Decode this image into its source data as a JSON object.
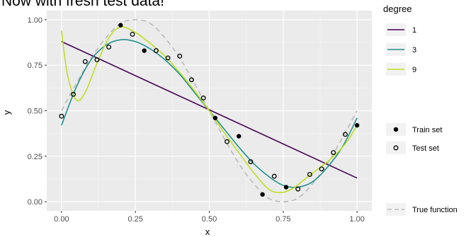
{
  "chart_data": {
    "type": "scatter",
    "title": "Now with fresh test data!",
    "xlabel": "x",
    "ylabel": "y",
    "xlim": [
      -0.05,
      1.05
    ],
    "ylim": [
      -0.05,
      1.05
    ],
    "x_ticks": [
      0,
      0.25,
      0.5,
      0.75,
      1
    ],
    "x_tick_labels": [
      "0.00",
      "0.25",
      "0.50",
      "0.75",
      "1.00"
    ],
    "y_ticks": [
      0,
      0.25,
      0.5,
      0.75,
      1
    ],
    "y_tick_labels": [
      "0.00",
      "0.25",
      "0.50",
      "0.75",
      "1.00"
    ],
    "grid": true,
    "panel_background": "#ebebeb",
    "legend_placement": "right",
    "degree_legend_title": "degree",
    "series": [
      {
        "name": "1",
        "color": "#440154",
        "points": [
          [
            0,
            0.88
          ],
          [
            1,
            0.13
          ]
        ]
      },
      {
        "name": "3",
        "color": "#21908c",
        "points": [
          [
            0,
            0.42
          ],
          [
            0.05,
            0.63
          ],
          [
            0.1,
            0.78
          ],
          [
            0.15,
            0.86
          ],
          [
            0.2,
            0.89
          ],
          [
            0.25,
            0.88
          ],
          [
            0.3,
            0.84
          ],
          [
            0.35,
            0.78
          ],
          [
            0.4,
            0.7
          ],
          [
            0.45,
            0.6
          ],
          [
            0.5,
            0.5
          ],
          [
            0.55,
            0.4
          ],
          [
            0.6,
            0.3
          ],
          [
            0.65,
            0.21
          ],
          [
            0.7,
            0.14
          ],
          [
            0.75,
            0.09
          ],
          [
            0.8,
            0.08
          ],
          [
            0.85,
            0.11
          ],
          [
            0.9,
            0.19
          ],
          [
            0.95,
            0.3
          ],
          [
            1,
            0.46
          ]
        ]
      },
      {
        "name": "9",
        "color": "#bddf26",
        "points": [
          [
            0,
            0.94
          ],
          [
            0.02,
            0.7
          ],
          [
            0.05,
            0.56
          ],
          [
            0.08,
            0.6
          ],
          [
            0.12,
            0.76
          ],
          [
            0.16,
            0.9
          ],
          [
            0.2,
            0.96
          ],
          [
            0.25,
            0.93
          ],
          [
            0.3,
            0.87
          ],
          [
            0.35,
            0.8
          ],
          [
            0.4,
            0.71
          ],
          [
            0.45,
            0.61
          ],
          [
            0.5,
            0.5
          ],
          [
            0.55,
            0.38
          ],
          [
            0.6,
            0.27
          ],
          [
            0.65,
            0.16
          ],
          [
            0.7,
            0.07
          ],
          [
            0.74,
            0.05
          ],
          [
            0.78,
            0.07
          ],
          [
            0.82,
            0.12
          ],
          [
            0.86,
            0.17
          ],
          [
            0.9,
            0.22
          ],
          [
            0.94,
            0.28
          ],
          [
            0.97,
            0.34
          ],
          [
            1,
            0.42
          ]
        ]
      }
    ],
    "true_function": {
      "name": "True function",
      "color": "#bbbbbb",
      "points": [
        [
          0,
          0.5
        ],
        [
          0.05,
          0.65
        ],
        [
          0.1,
          0.79
        ],
        [
          0.15,
          0.9
        ],
        [
          0.2,
          0.98
        ],
        [
          0.25,
          1.0
        ],
        [
          0.3,
          0.98
        ],
        [
          0.35,
          0.9
        ],
        [
          0.4,
          0.79
        ],
        [
          0.45,
          0.65
        ],
        [
          0.5,
          0.5
        ],
        [
          0.55,
          0.35
        ],
        [
          0.6,
          0.21
        ],
        [
          0.65,
          0.1
        ],
        [
          0.7,
          0.02
        ],
        [
          0.75,
          0.0
        ],
        [
          0.8,
          0.02
        ],
        [
          0.85,
          0.1
        ],
        [
          0.9,
          0.21
        ],
        [
          0.95,
          0.35
        ],
        [
          1,
          0.5
        ]
      ]
    },
    "train_set": {
      "name": "Train set",
      "points": [
        [
          0.2,
          0.97
        ],
        [
          0.28,
          0.83
        ],
        [
          0.52,
          0.46
        ],
        [
          0.6,
          0.36
        ],
        [
          0.68,
          0.04
        ],
        [
          0.76,
          0.08
        ],
        [
          1.0,
          0.42
        ]
      ]
    },
    "test_set": {
      "name": "Test set",
      "points": [
        [
          0.0,
          0.47
        ],
        [
          0.04,
          0.59
        ],
        [
          0.08,
          0.77
        ],
        [
          0.12,
          0.78
        ],
        [
          0.16,
          0.85
        ],
        [
          0.24,
          0.92
        ],
        [
          0.32,
          0.83
        ],
        [
          0.36,
          0.79
        ],
        [
          0.4,
          0.8
        ],
        [
          0.44,
          0.67
        ],
        [
          0.48,
          0.57
        ],
        [
          0.56,
          0.33
        ],
        [
          0.64,
          0.22
        ],
        [
          0.72,
          0.14
        ],
        [
          0.8,
          0.07
        ],
        [
          0.84,
          0.15
        ],
        [
          0.88,
          0.18
        ],
        [
          0.92,
          0.27
        ],
        [
          0.96,
          0.37
        ]
      ]
    }
  }
}
